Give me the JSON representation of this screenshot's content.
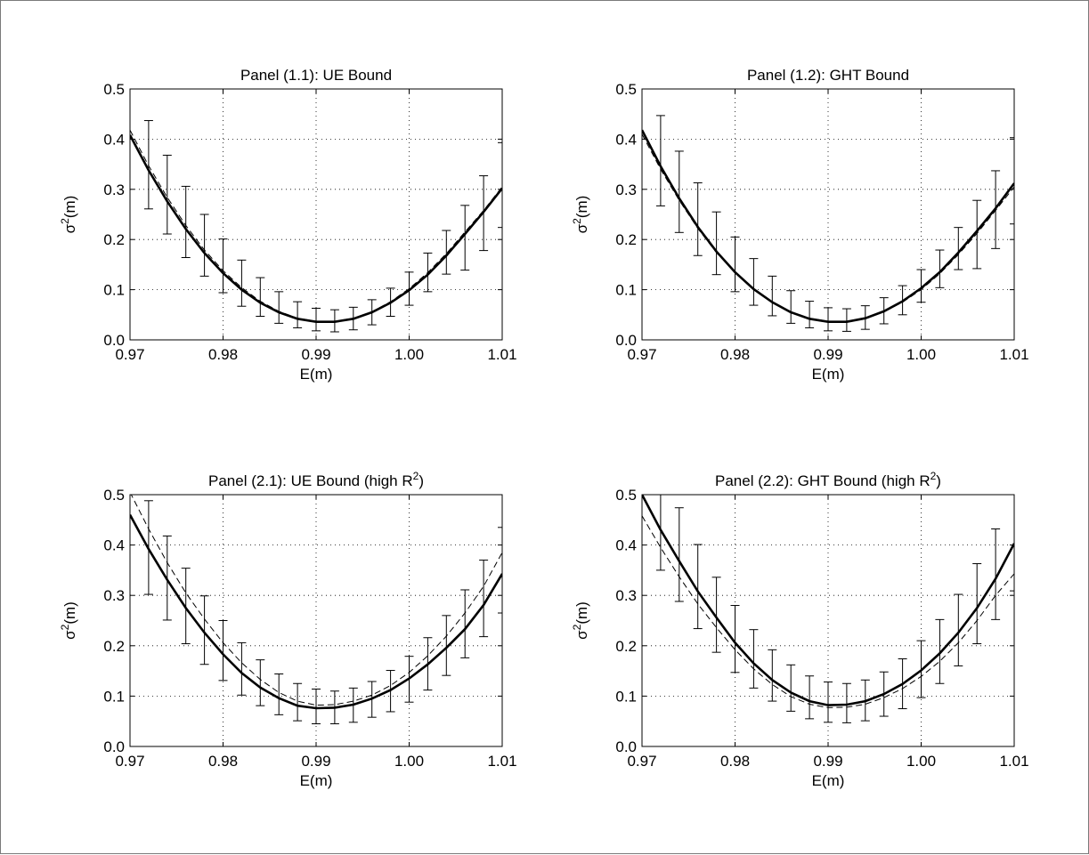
{
  "chart_data": [
    {
      "type": "line",
      "title": "Panel (1.1): UE Bound",
      "title_superscript": "",
      "title_suffix": "",
      "xlabel": "E(m)",
      "ylabel": "σ",
      "ylabel_superscript": "2",
      "ylabel_suffix": "(m)",
      "xlim": [
        0.97,
        1.01
      ],
      "ylim": [
        0.0,
        0.5
      ],
      "x_ticks": [
        "0.97",
        "0.98",
        "0.99",
        "1.00",
        "1.01"
      ],
      "y_ticks": [
        "0.0",
        "0.1",
        "0.2",
        "0.3",
        "0.4",
        "0.5"
      ],
      "grid": true,
      "series": [
        {
          "style": "solid-thick",
          "x": [
            0.97,
            0.972,
            0.974,
            0.976,
            0.978,
            0.98,
            0.982,
            0.984,
            0.986,
            0.988,
            0.99,
            0.992,
            0.994,
            0.996,
            0.998,
            1.0,
            1.002,
            1.004,
            1.006,
            1.008,
            1.01
          ],
          "y": [
            0.408,
            0.338,
            0.276,
            0.221,
            0.173,
            0.133,
            0.1,
            0.074,
            0.055,
            0.042,
            0.036,
            0.036,
            0.042,
            0.055,
            0.074,
            0.099,
            0.13,
            0.168,
            0.211,
            0.255,
            0.302
          ]
        },
        {
          "style": "dashed",
          "x": [
            0.97,
            0.972,
            0.974,
            0.976,
            0.978,
            0.98,
            0.982,
            0.984,
            0.986,
            0.988,
            0.99,
            0.992,
            0.994,
            0.996,
            0.998,
            1.0,
            1.002,
            1.004,
            1.006,
            1.008,
            1.01
          ],
          "y": [
            0.418,
            0.347,
            0.284,
            0.228,
            0.179,
            0.138,
            0.104,
            0.077,
            0.057,
            0.043,
            0.037,
            0.037,
            0.043,
            0.056,
            0.076,
            0.102,
            0.134,
            0.172,
            0.215,
            0.258,
            0.305
          ]
        }
      ],
      "error_bars": {
        "x": [
          0.972,
          0.974,
          0.976,
          0.978,
          0.98,
          0.982,
          0.984,
          0.986,
          0.988,
          0.99,
          0.992,
          0.994,
          0.996,
          0.998,
          1.0,
          1.002,
          1.004,
          1.006,
          1.008,
          1.01
        ],
        "upper": [
          0.437,
          0.368,
          0.306,
          0.25,
          0.201,
          0.159,
          0.124,
          0.096,
          0.076,
          0.063,
          0.06,
          0.065,
          0.08,
          0.103,
          0.135,
          0.173,
          0.218,
          0.268,
          0.327,
          0.393
        ],
        "lower": [
          0.261,
          0.211,
          0.164,
          0.127,
          0.094,
          0.067,
          0.047,
          0.033,
          0.024,
          0.018,
          0.016,
          0.02,
          0.03,
          0.047,
          0.069,
          0.096,
          0.131,
          0.139,
          0.178,
          0.224
        ]
      }
    },
    {
      "type": "line",
      "title": "Panel (1.2): GHT Bound",
      "title_superscript": "",
      "title_suffix": "",
      "xlabel": "E(m)",
      "ylabel": "σ",
      "ylabel_superscript": "2",
      "ylabel_suffix": "(m)",
      "xlim": [
        0.97,
        1.01
      ],
      "ylim": [
        0.0,
        0.5
      ],
      "x_ticks": [
        "0.97",
        "0.98",
        "0.99",
        "1.00",
        "1.01"
      ],
      "y_ticks": [
        "0.0",
        "0.1",
        "0.2",
        "0.3",
        "0.4",
        "0.5"
      ],
      "grid": true,
      "series": [
        {
          "style": "solid-thick",
          "x": [
            0.97,
            0.972,
            0.974,
            0.976,
            0.978,
            0.98,
            0.982,
            0.984,
            0.986,
            0.988,
            0.99,
            0.992,
            0.994,
            0.996,
            0.998,
            1.0,
            1.002,
            1.004,
            1.006,
            1.008,
            1.01
          ],
          "y": [
            0.418,
            0.346,
            0.282,
            0.225,
            0.176,
            0.135,
            0.101,
            0.075,
            0.055,
            0.042,
            0.036,
            0.036,
            0.043,
            0.057,
            0.077,
            0.103,
            0.135,
            0.174,
            0.217,
            0.262,
            0.312
          ]
        },
        {
          "style": "dashed",
          "x": [
            0.97,
            0.972,
            0.974,
            0.976,
            0.978,
            0.98,
            0.982,
            0.984,
            0.986,
            0.988,
            0.99,
            0.992,
            0.994,
            0.996,
            0.998,
            1.0,
            1.002,
            1.004,
            1.006,
            1.008,
            1.01
          ],
          "y": [
            0.41,
            0.34,
            0.278,
            0.222,
            0.174,
            0.134,
            0.101,
            0.075,
            0.056,
            0.043,
            0.037,
            0.037,
            0.043,
            0.056,
            0.075,
            0.1,
            0.132,
            0.17,
            0.212,
            0.258,
            0.305
          ]
        }
      ],
      "error_bars": {
        "x": [
          0.972,
          0.974,
          0.976,
          0.978,
          0.98,
          0.982,
          0.984,
          0.986,
          0.988,
          0.99,
          0.992,
          0.994,
          0.996,
          0.998,
          1.0,
          1.002,
          1.004,
          1.006,
          1.008,
          1.01
        ],
        "upper": [
          0.447,
          0.376,
          0.313,
          0.255,
          0.205,
          0.162,
          0.127,
          0.098,
          0.077,
          0.064,
          0.062,
          0.068,
          0.084,
          0.108,
          0.14,
          0.179,
          0.224,
          0.278,
          0.337,
          0.403
        ],
        "lower": [
          0.267,
          0.214,
          0.168,
          0.13,
          0.096,
          0.069,
          0.048,
          0.033,
          0.024,
          0.018,
          0.017,
          0.021,
          0.032,
          0.05,
          0.075,
          0.104,
          0.14,
          0.142,
          0.182,
          0.231
        ]
      }
    },
    {
      "type": "line",
      "title": "Panel (2.1): UE Bound (high R",
      "title_superscript": "2",
      "title_suffix": ")",
      "xlabel": "E(m)",
      "ylabel": "σ",
      "ylabel_superscript": "2",
      "ylabel_suffix": "(m)",
      "xlim": [
        0.97,
        1.01
      ],
      "ylim": [
        0.0,
        0.5
      ],
      "x_ticks": [
        "0.97",
        "0.98",
        "0.99",
        "1.00",
        "1.01"
      ],
      "y_ticks": [
        "0.0",
        "0.1",
        "0.2",
        "0.3",
        "0.4",
        "0.5"
      ],
      "grid": true,
      "series": [
        {
          "style": "solid-thick",
          "x": [
            0.97,
            0.972,
            0.974,
            0.976,
            0.978,
            0.98,
            0.982,
            0.984,
            0.986,
            0.988,
            0.99,
            0.992,
            0.994,
            0.996,
            0.998,
            1.0,
            1.002,
            1.004,
            1.006,
            1.008,
            1.01
          ],
          "y": [
            0.46,
            0.392,
            0.331,
            0.275,
            0.226,
            0.183,
            0.146,
            0.117,
            0.096,
            0.081,
            0.076,
            0.077,
            0.083,
            0.095,
            0.112,
            0.135,
            0.163,
            0.196,
            0.233,
            0.281,
            0.343
          ]
        },
        {
          "style": "dashed",
          "x": [
            0.97,
            0.972,
            0.974,
            0.976,
            0.978,
            0.98,
            0.982,
            0.984,
            0.986,
            0.988,
            0.99,
            0.992,
            0.994,
            0.996,
            0.998,
            1.0,
            1.002,
            1.004,
            1.006,
            1.008,
            1.01
          ],
          "y": [
            0.505,
            0.432,
            0.365,
            0.305,
            0.253,
            0.206,
            0.166,
            0.133,
            0.107,
            0.09,
            0.082,
            0.083,
            0.09,
            0.102,
            0.121,
            0.147,
            0.18,
            0.219,
            0.265,
            0.318,
            0.385
          ]
        }
      ],
      "error_bars": {
        "x": [
          0.972,
          0.974,
          0.976,
          0.978,
          0.98,
          0.982,
          0.984,
          0.986,
          0.988,
          0.99,
          0.992,
          0.994,
          0.996,
          0.998,
          1.0,
          1.002,
          1.004,
          1.006,
          1.008,
          1.01
        ],
        "upper": [
          0.488,
          0.418,
          0.354,
          0.299,
          0.25,
          0.206,
          0.172,
          0.144,
          0.125,
          0.114,
          0.11,
          0.116,
          0.129,
          0.151,
          0.179,
          0.216,
          0.26,
          0.311,
          0.37,
          0.435
        ],
        "lower": [
          0.302,
          0.251,
          0.204,
          0.163,
          0.131,
          0.102,
          0.081,
          0.063,
          0.051,
          0.045,
          0.045,
          0.048,
          0.058,
          0.069,
          0.088,
          0.112,
          0.141,
          0.176,
          0.218,
          0.265
        ]
      }
    },
    {
      "type": "line",
      "title": "Panel (2.2): GHT Bound (high R",
      "title_superscript": "2",
      "title_suffix": ")",
      "xlabel": "E(m)",
      "ylabel": "σ",
      "ylabel_superscript": "2",
      "ylabel_suffix": "(m)",
      "xlim": [
        0.97,
        1.01
      ],
      "ylim": [
        0.0,
        0.5
      ],
      "x_ticks": [
        "0.97",
        "0.98",
        "0.99",
        "1.00",
        "1.01"
      ],
      "y_ticks": [
        "0.0",
        "0.1",
        "0.2",
        "0.3",
        "0.4",
        "0.5"
      ],
      "grid": true,
      "series": [
        {
          "style": "solid-thick",
          "x": [
            0.97,
            0.972,
            0.974,
            0.976,
            0.978,
            0.98,
            0.982,
            0.984,
            0.986,
            0.988,
            0.99,
            0.992,
            0.994,
            0.996,
            0.998,
            1.0,
            1.002,
            1.004,
            1.006,
            1.008,
            1.01
          ],
          "y": [
            0.5,
            0.43,
            0.368,
            0.308,
            0.256,
            0.206,
            0.165,
            0.132,
            0.107,
            0.09,
            0.082,
            0.083,
            0.09,
            0.104,
            0.124,
            0.151,
            0.185,
            0.226,
            0.275,
            0.333,
            0.403
          ]
        },
        {
          "style": "dashed",
          "x": [
            0.97,
            0.972,
            0.974,
            0.976,
            0.978,
            0.98,
            0.982,
            0.984,
            0.986,
            0.988,
            0.99,
            0.992,
            0.994,
            0.996,
            0.998,
            1.0,
            1.002,
            1.004,
            1.006,
            1.008,
            1.01
          ],
          "y": [
            0.458,
            0.395,
            0.337,
            0.283,
            0.236,
            0.192,
            0.154,
            0.123,
            0.099,
            0.084,
            0.077,
            0.078,
            0.084,
            0.097,
            0.115,
            0.139,
            0.169,
            0.206,
            0.25,
            0.3,
            0.343
          ]
        }
      ],
      "error_bars": {
        "x": [
          0.972,
          0.974,
          0.976,
          0.978,
          0.98,
          0.982,
          0.984,
          0.986,
          0.988,
          0.99,
          0.992,
          0.994,
          0.996,
          0.998,
          1.0,
          1.002,
          1.004,
          1.006,
          1.008,
          1.01
        ],
        "upper": [
          0.547,
          0.474,
          0.401,
          0.336,
          0.28,
          0.232,
          0.192,
          0.162,
          0.14,
          0.128,
          0.125,
          0.132,
          0.148,
          0.174,
          0.21,
          0.252,
          0.302,
          0.363,
          0.432,
          0.506
        ],
        "lower": [
          0.35,
          0.288,
          0.234,
          0.187,
          0.147,
          0.116,
          0.09,
          0.07,
          0.055,
          0.048,
          0.047,
          0.051,
          0.06,
          0.075,
          0.097,
          0.125,
          0.16,
          0.204,
          0.252,
          0.309
        ]
      }
    }
  ]
}
